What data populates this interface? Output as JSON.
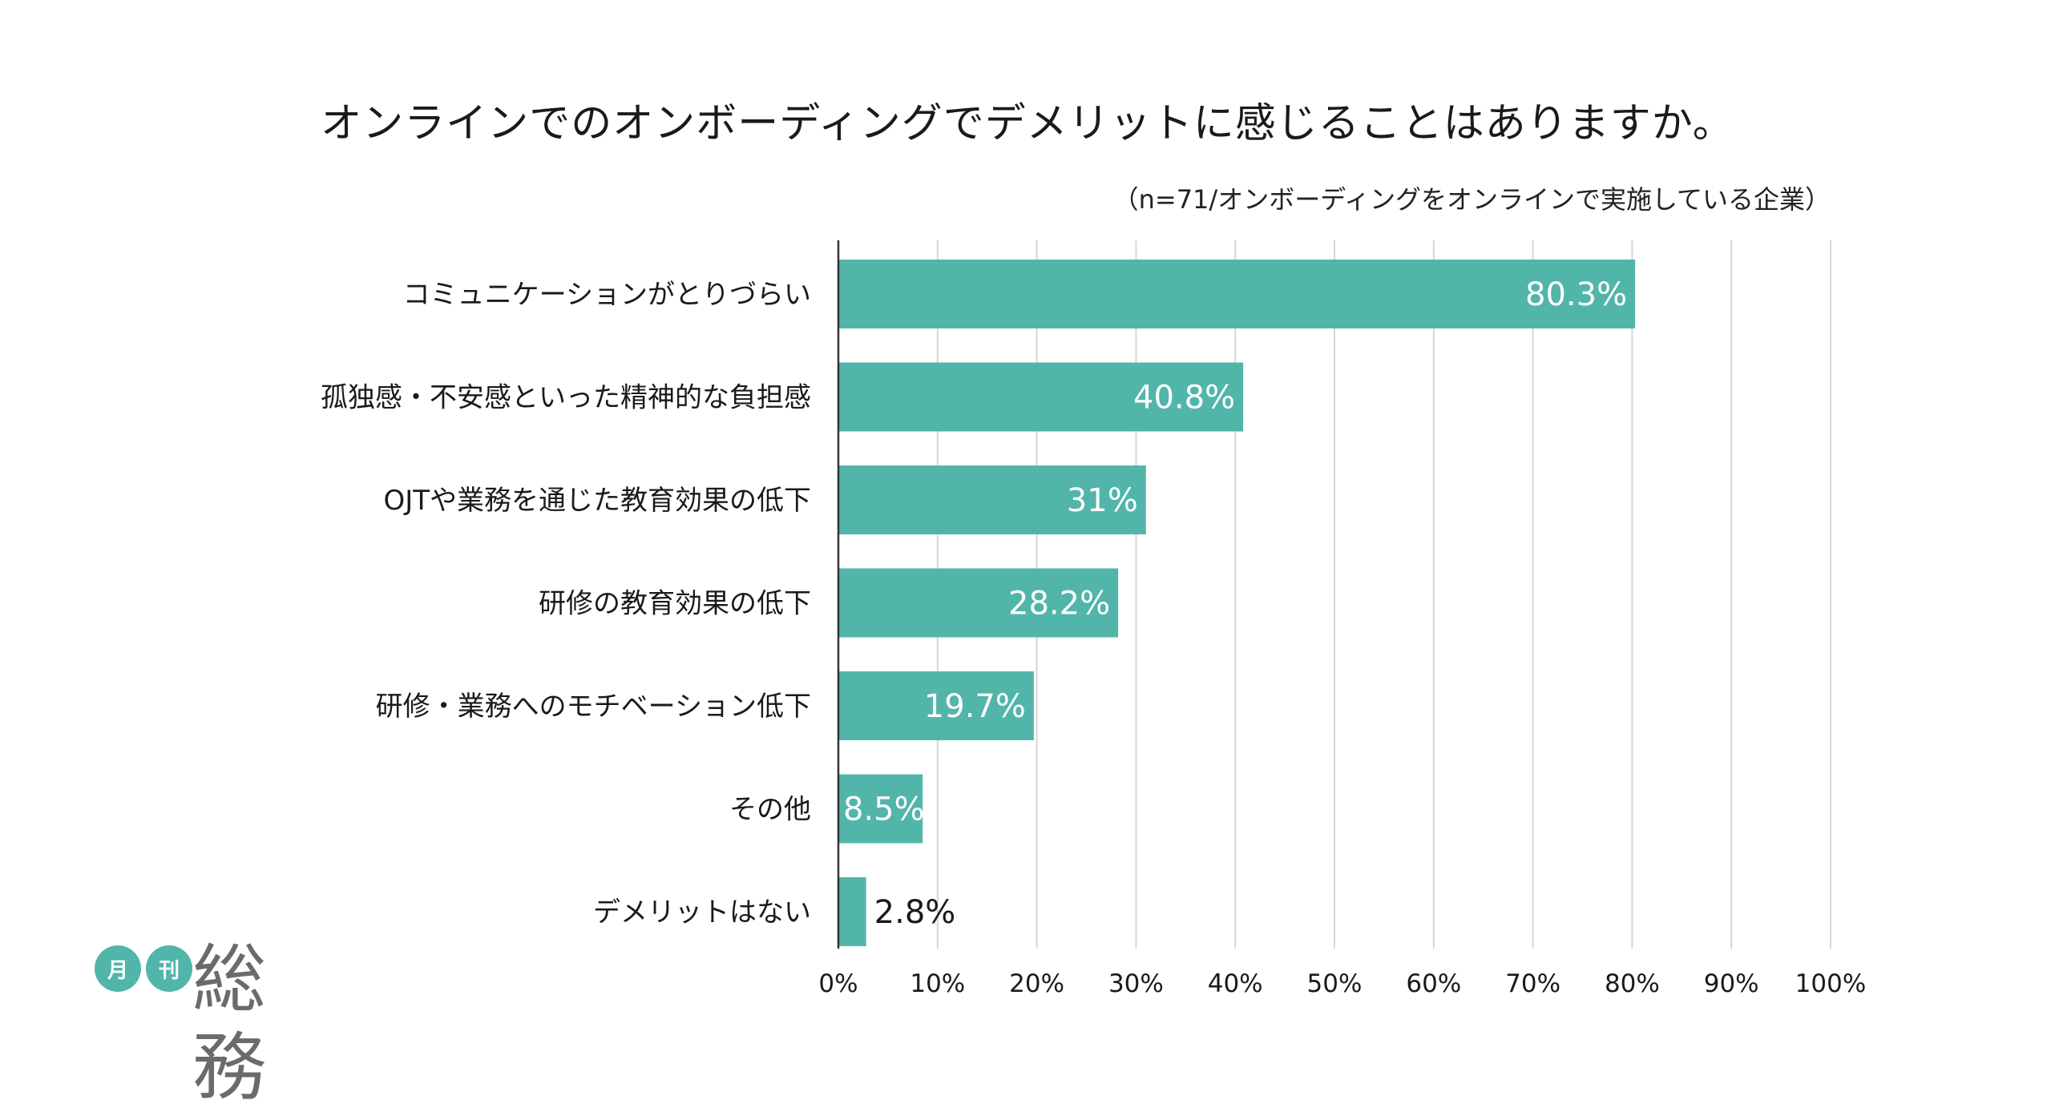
{
  "chart_data": {
    "type": "bar",
    "orientation": "horizontal",
    "title": "オンラインでのオンボーディングでデメリットに感じることはありますか。",
    "subtitle": "（n=71/オンボーディングをオンラインで実施している企業）",
    "categories": [
      "コミュニケーションがとりづらい",
      "孤独感・不安感といった精神的な負担感",
      "OJTや業務を通じた教育効果の低下",
      "研修の教育効果の低下",
      "研修・業務へのモチベーション低下",
      "その他",
      "デメリットはない"
    ],
    "values": [
      80.3,
      40.8,
      31,
      28.2,
      19.7,
      8.5,
      2.8
    ],
    "data_labels": [
      "80.3%",
      "40.8%",
      "31%",
      "28.2%",
      "19.7%",
      "8.5%",
      "2.8%"
    ],
    "x_ticks": [
      "0%",
      "10%",
      "20%",
      "30%",
      "40%",
      "50%",
      "60%",
      "70%",
      "80%",
      "90%",
      "100%"
    ],
    "xlim": [
      0,
      100
    ],
    "grid": true,
    "legend": "none",
    "bar_color": "#52b5aa"
  },
  "logo": {
    "badge_1": "月",
    "badge_2": "刊",
    "name": "総務"
  }
}
